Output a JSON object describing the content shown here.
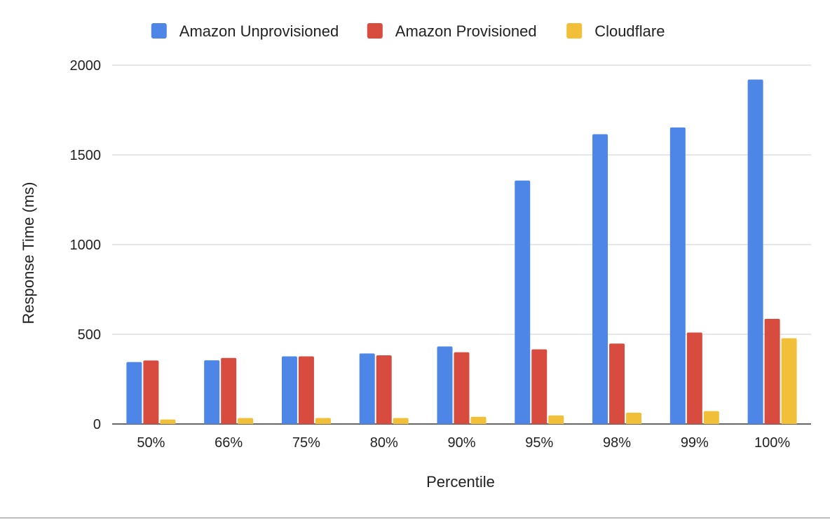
{
  "chart_data": {
    "type": "bar",
    "title": "",
    "xlabel": "Percentile",
    "ylabel": "Response Time (ms)",
    "categories": [
      "50%",
      "66%",
      "75%",
      "80%",
      "90%",
      "95%",
      "98%",
      "99%",
      "100%"
    ],
    "series": [
      {
        "name": "Amazon Unprovisioned",
        "color": "#4e86e8",
        "values": [
          345,
          355,
          377,
          393,
          432,
          1357,
          1615,
          1653,
          1920
        ]
      },
      {
        "name": "Amazon Provisioned",
        "color": "#d84c3f",
        "values": [
          354,
          368,
          377,
          383,
          400,
          416,
          448,
          510,
          586
        ]
      },
      {
        "name": "Cloudflare",
        "color": "#f2c038",
        "values": [
          25,
          33,
          33,
          33,
          40,
          48,
          63,
          72,
          478
        ]
      }
    ],
    "ylim": [
      0,
      2000
    ],
    "yticks": [
      0,
      500,
      1000,
      1500,
      2000
    ],
    "grid": true,
    "legend_position": "top"
  }
}
